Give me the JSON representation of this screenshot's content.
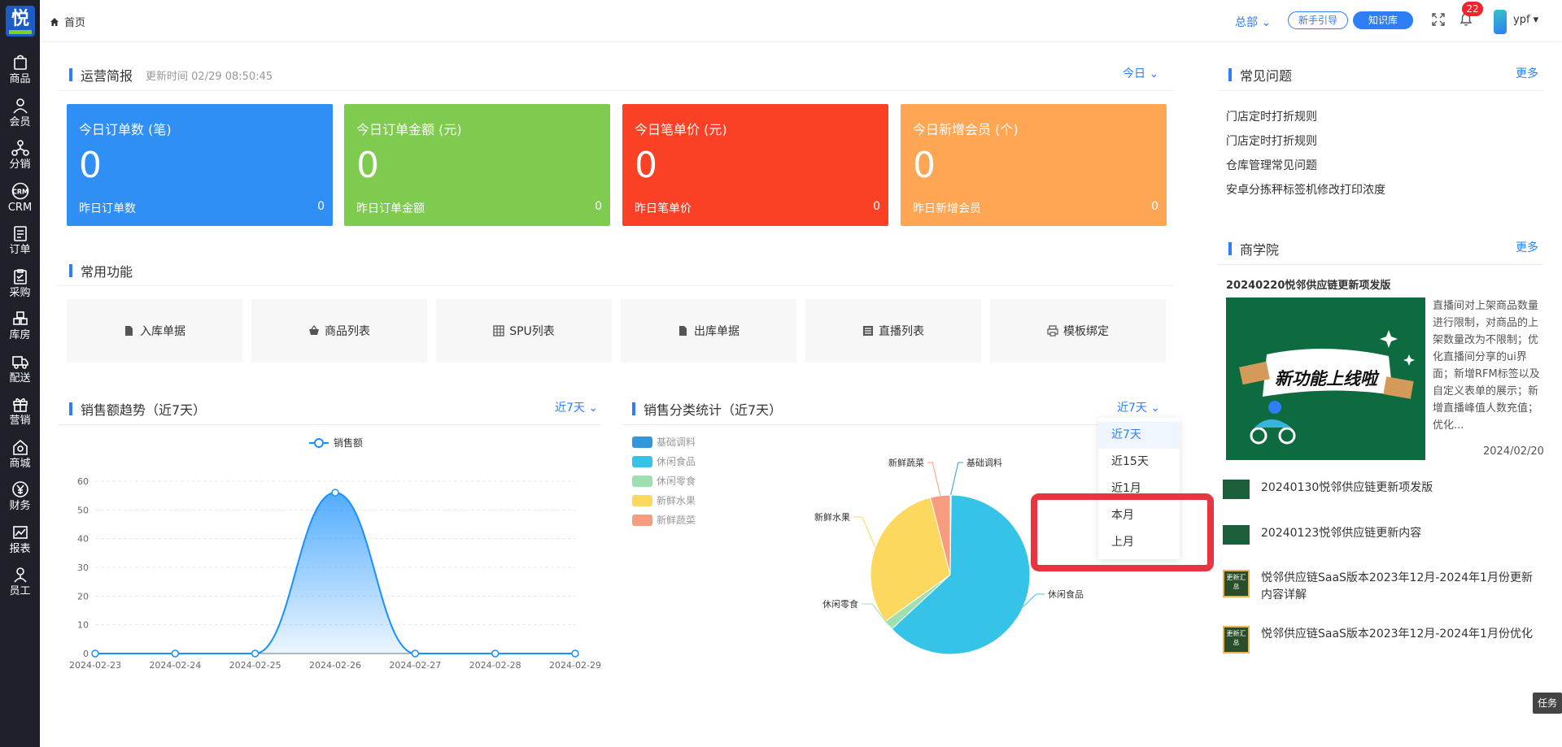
{
  "app": {
    "logo_text": "悦"
  },
  "sidebar": {
    "items": [
      {
        "label": "商品",
        "icon": "bag-icon"
      },
      {
        "label": "会员",
        "icon": "user-icon"
      },
      {
        "label": "分销",
        "icon": "network-icon"
      },
      {
        "label": "CRM",
        "icon": "crm-icon"
      },
      {
        "label": "订单",
        "icon": "order-icon"
      },
      {
        "label": "采购",
        "icon": "clipboard-icon"
      },
      {
        "label": "库房",
        "icon": "warehouse-icon"
      },
      {
        "label": "配送",
        "icon": "truck-icon"
      },
      {
        "label": "营销",
        "icon": "gift-icon"
      },
      {
        "label": "商城",
        "icon": "shop-icon"
      },
      {
        "label": "财务",
        "icon": "yen-icon"
      },
      {
        "label": "报表",
        "icon": "chart-icon"
      },
      {
        "label": "员工",
        "icon": "staff-icon"
      }
    ]
  },
  "header": {
    "breadcrumb": "首页",
    "org": "总部",
    "guide_btn": "新手引导",
    "kb_btn": "知识库",
    "notifications": "22",
    "user": "ypf"
  },
  "ops": {
    "title": "运营简报",
    "updated": "更新时间 02/29 08:50:45",
    "period": "今日",
    "kpis": [
      {
        "title": "今日订单数 (笔)",
        "value": "0",
        "yesterday_label": "昨日订单数",
        "yesterday_value": "0",
        "color": "#2f8ff5"
      },
      {
        "title": "今日订单金额 (元)",
        "value": "0",
        "yesterday_label": "昨日订单金额",
        "yesterday_value": "0",
        "color": "#7ecb4f"
      },
      {
        "title": "今日笔单价 (元)",
        "value": "0",
        "yesterday_label": "昨日笔单价",
        "yesterday_value": "0",
        "color": "#fb4125"
      },
      {
        "title": "今日新增会员 (个)",
        "value": "0",
        "yesterday_label": "昨日新增会员",
        "yesterday_value": "0",
        "color": "#ffa654"
      }
    ]
  },
  "functions": {
    "title": "常用功能",
    "items": [
      {
        "label": "入库单据",
        "icon": "file-icon"
      },
      {
        "label": "商品列表",
        "icon": "basket-icon"
      },
      {
        "label": "SPU列表",
        "icon": "grid-icon"
      },
      {
        "label": "出库单据",
        "icon": "file-icon"
      },
      {
        "label": "直播列表",
        "icon": "list-icon"
      },
      {
        "label": "模板绑定",
        "icon": "printer-icon"
      }
    ]
  },
  "trend": {
    "title": "销售额趋势（近7天）",
    "period": "近7天"
  },
  "category": {
    "title": "销售分类统计（近7天）",
    "period": "近7天",
    "dropdown": [
      "近7天",
      "近15天",
      "近1月",
      "本月",
      "上月"
    ]
  },
  "faq": {
    "title": "常见问题",
    "more": "更多",
    "items": [
      "门店定时打折规则",
      "门店定时打折规则",
      "仓库管理常见问题",
      "安卓分拣秤标签机修改打印浓度"
    ]
  },
  "academy": {
    "title": "商学院",
    "more": "更多",
    "featured_title": "20240220悦邻供应链更新项发版",
    "featured_banner": "新功能上线啦",
    "featured_desc": "直播间对上架商品数量进行限制，对商品的上架数量改为不限制；优化直播间分享的ui界面；新增RFM标签以及自定义表单的展示；新增直播峰值人数充值；优化...",
    "featured_date": "2024/02/20",
    "news": [
      {
        "text": "20240130悦邻供应链更新项发版",
        "thumb": ""
      },
      {
        "text": "20240123悦邻供应链更新内容",
        "thumb": ""
      },
      {
        "text": "悦邻供应链SaaS版本2023年12月-2024年1月份更新内容详解",
        "thumb": "更新汇总"
      },
      {
        "text": "悦邻供应链SaaS版本2023年12月-2024年1月份优化",
        "thumb": "更新汇总"
      }
    ]
  },
  "task_btn": "任务",
  "chart_data": [
    {
      "type": "line",
      "legend": [
        "销售额"
      ],
      "x": [
        "2024-02-23",
        "2024-02-24",
        "2024-02-25",
        "2024-02-26",
        "2024-02-27",
        "2024-02-28",
        "2024-02-29"
      ],
      "series": [
        {
          "name": "销售额",
          "values": [
            0,
            0,
            0,
            56,
            0,
            0,
            0
          ]
        }
      ],
      "ylim": [
        0,
        60
      ],
      "yticks": [
        0,
        10,
        20,
        30,
        40,
        50,
        60
      ],
      "color": "#1890ff",
      "smooth": true,
      "area": true
    },
    {
      "type": "pie",
      "legend": [
        "基础调料",
        "休闲食品",
        "休闲零食",
        "新鲜水果",
        "新鲜蔬菜"
      ],
      "slices": [
        {
          "name": "基础调料",
          "value": 0.2,
          "color": "#3398db"
        },
        {
          "name": "休闲食品",
          "value": 63,
          "color": "#36c3e8"
        },
        {
          "name": "休闲零食",
          "value": 2,
          "color": "#9ee0b0"
        },
        {
          "name": "新鲜水果",
          "value": 31,
          "color": "#fdd85e"
        },
        {
          "name": "新鲜蔬菜",
          "value": 4,
          "color": "#f79c7f"
        }
      ]
    }
  ]
}
